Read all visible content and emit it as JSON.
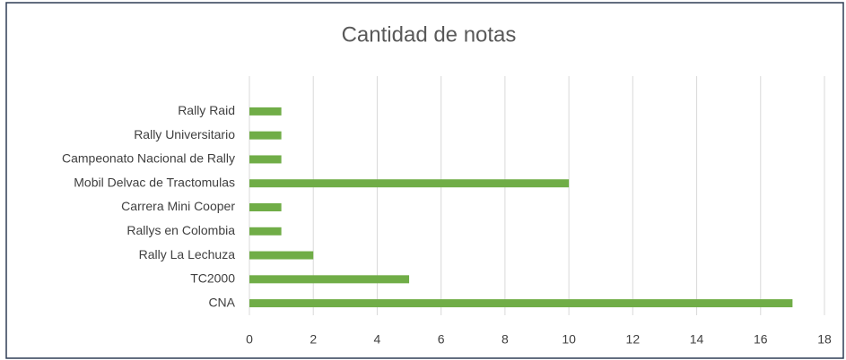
{
  "chart_data": {
    "type": "bar",
    "orientation": "horizontal",
    "title": "Cantidad de notas",
    "categories": [
      "Rally Raid",
      "Rally Universitario",
      "Campeonato Nacional de Rally",
      "Mobil Delvac de Tractomulas",
      "Carrera Mini Cooper",
      "Rallys en Colombia",
      "Rally La Lechuza",
      "TC2000",
      "CNA"
    ],
    "values": [
      1,
      1,
      1,
      10,
      1,
      1,
      2,
      5,
      17
    ],
    "color": "#70ad47",
    "xlim": [
      0,
      18
    ],
    "xticks": [
      0,
      2,
      4,
      6,
      8,
      10,
      12,
      14,
      16,
      18
    ],
    "grid": true
  }
}
